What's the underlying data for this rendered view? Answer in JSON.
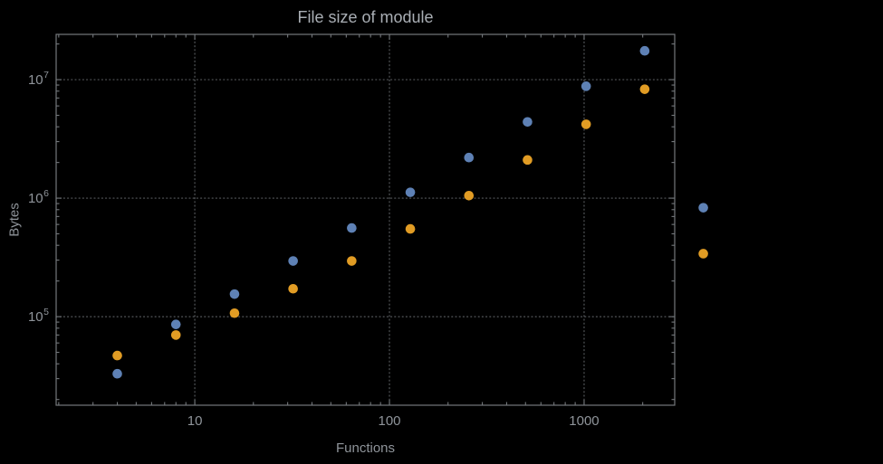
{
  "chart_data": {
    "type": "scatter",
    "title": "File size of module",
    "xlabel": "Functions",
    "ylabel": "Bytes",
    "x_scale": "log",
    "y_scale": "log",
    "xlim": [
      1.94,
      2920
    ],
    "ylim": [
      17900,
      24100000
    ],
    "grid": "dotted-major",
    "legend": "none",
    "x_ticks": [
      {
        "value": 10,
        "label": "10"
      },
      {
        "value": 100,
        "label": "100"
      },
      {
        "value": 1000,
        "label": "1000"
      }
    ],
    "y_ticks": [
      {
        "value": 100000,
        "label": "10^5",
        "base": "10",
        "exponent": "5"
      },
      {
        "value": 1000000,
        "label": "10^6",
        "base": "10",
        "exponent": "6"
      },
      {
        "value": 10000000,
        "label": "10^7",
        "base": "10",
        "exponent": "7"
      }
    ],
    "series": [
      {
        "name": "series-blue",
        "color": "#5e81b5",
        "x": [
          4,
          8,
          16,
          32,
          64,
          128,
          256,
          512,
          1024,
          2048,
          4096
        ],
        "y": [
          33000,
          86000,
          155000,
          295000,
          560000,
          1120000,
          2200000,
          4400000,
          8800000,
          17500000,
          830000
        ]
      },
      {
        "name": "series-orange",
        "color": "#e19c24",
        "x": [
          4,
          8,
          16,
          32,
          64,
          128,
          256,
          512,
          1024,
          2048,
          4096
        ],
        "y": [
          47000,
          70000,
          107000,
          172000,
          295000,
          550000,
          1050000,
          2100000,
          4200000,
          8300000,
          340000
        ]
      }
    ],
    "colors": {
      "background": "#000000",
      "frame": "#74787c",
      "grid": "#55585b",
      "tick": "#74787c",
      "text": "#8f949a",
      "title": "#a9aeb4"
    }
  }
}
